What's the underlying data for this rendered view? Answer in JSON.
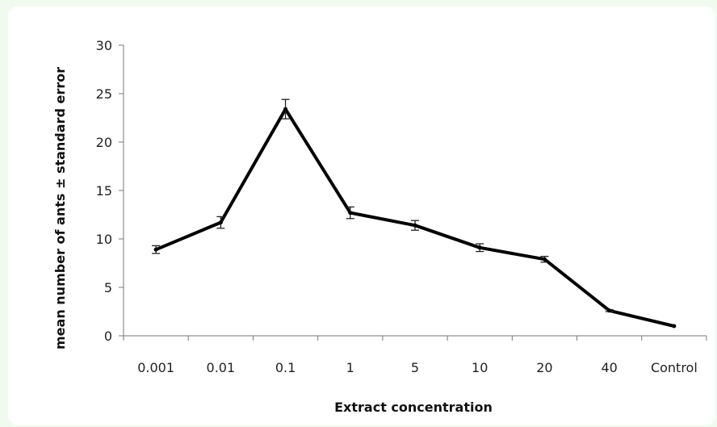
{
  "chart_data": {
    "type": "line",
    "xlabel": "Extract concentration",
    "ylabel": "mean number of ants ± standard error",
    "ylim": [
      0,
      30
    ],
    "yticks": [
      0,
      5,
      10,
      15,
      20,
      25,
      30
    ],
    "categories": [
      "0.001",
      "0.01",
      "0.1",
      "1",
      "5",
      "10",
      "20",
      "40",
      "Control"
    ],
    "series": [
      {
        "values": [
          8.9,
          11.7,
          23.4,
          12.7,
          11.4,
          9.1,
          7.9,
          2.6,
          1.0
        ],
        "errors": [
          0.4,
          0.6,
          1.0,
          0.6,
          0.5,
          0.4,
          0.3,
          0.1,
          0.0
        ]
      }
    ],
    "grid": false,
    "line_color": "#000000"
  }
}
